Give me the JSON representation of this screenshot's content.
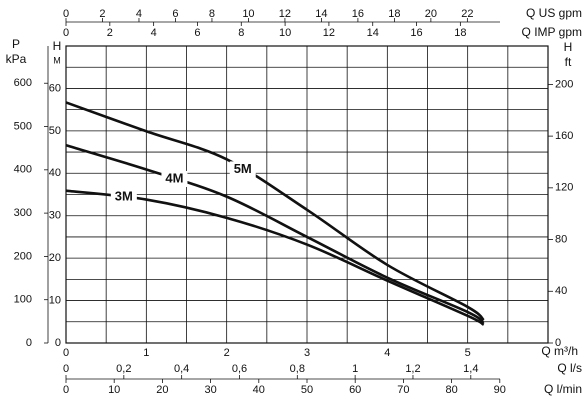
{
  "chart_data": {
    "type": "line",
    "xlabel": "Q m³/h",
    "xlim": [
      0,
      6
    ],
    "xticks": [
      0,
      1,
      2,
      3,
      4,
      5
    ],
    "x_grid": [
      0,
      0.5,
      1,
      1.5,
      2,
      2.5,
      3,
      3.5,
      4,
      4.5,
      5,
      5.5,
      6
    ],
    "ylabel_top": "H",
    "ylabel": "M",
    "ylim": [
      0,
      70
    ],
    "yticks": [
      0,
      10,
      20,
      30,
      40,
      50,
      60
    ],
    "y_grid": [
      0,
      5,
      10,
      15,
      20,
      25,
      30,
      35,
      40,
      45,
      50,
      55,
      60,
      65,
      70
    ],
    "p_axis": {
      "label_top": "P",
      "label": "kPa",
      "lim": [
        0,
        686
      ],
      "ticks": [
        0,
        100,
        200,
        300,
        400,
        500,
        600
      ]
    },
    "ft_axis": {
      "label_top": "H",
      "label": "ft",
      "lim": [
        0,
        229.7
      ],
      "ticks": [
        0,
        40,
        80,
        120,
        160,
        200
      ]
    },
    "us_gpm_axis": {
      "label": "Q US gpm",
      "lim": [
        0,
        26.42
      ],
      "ticks": [
        0,
        2,
        4,
        6,
        8,
        10,
        12,
        14,
        16,
        18,
        20,
        22
      ]
    },
    "imp_gpm_axis": {
      "label": "Q IMP gpm",
      "lim": [
        0,
        22
      ],
      "ticks": [
        0,
        2,
        4,
        6,
        8,
        10,
        12,
        14,
        16,
        18
      ]
    },
    "ls_axis": {
      "label": "Q l/s",
      "lim": [
        0,
        1.667
      ],
      "ticks": [
        0,
        {
          "value": 0.2,
          "label": "0,2"
        },
        {
          "value": 0.4,
          "label": "0,4"
        },
        {
          "value": 0.6,
          "label": "0,6"
        },
        {
          "value": 0.8,
          "label": "0,8"
        },
        1,
        {
          "value": 1.2,
          "label": "1,2"
        },
        {
          "value": 1.4,
          "label": "1,4"
        }
      ]
    },
    "lmin_axis": {
      "label": "Q l/min",
      "lim": [
        0,
        100
      ],
      "ticks": [
        0,
        10,
        20,
        30,
        40,
        50,
        60,
        70,
        80,
        90
      ]
    },
    "x": [
      0,
      1,
      2,
      3,
      4,
      5,
      5.2
    ],
    "series": [
      {
        "name": "3M",
        "color": "#111111",
        "values": [
          35.9,
          33.8,
          29.5,
          23.2,
          14.7,
          6.4,
          4.3
        ]
      },
      {
        "name": "4M",
        "color": "#111111",
        "values": [
          46.6,
          40.9,
          34.5,
          25,
          15.4,
          7.3,
          4.7
        ]
      },
      {
        "name": "5M",
        "color": "#111111",
        "values": [
          56.7,
          49.9,
          43.3,
          31.4,
          18.4,
          8.5,
          5.4
        ]
      }
    ]
  }
}
